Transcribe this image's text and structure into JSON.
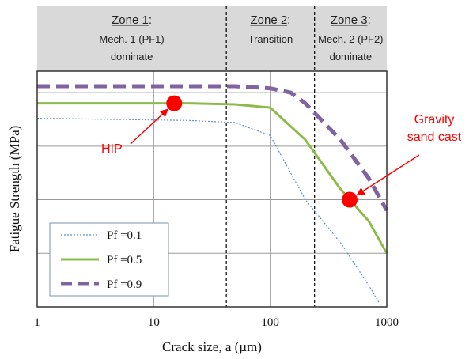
{
  "chart_data": {
    "type": "line",
    "xlabel": "Crack size, a (µm)",
    "ylabel": "Fatigue Strength (MPa)",
    "xscale": "log",
    "xlim": [
      1,
      1000
    ],
    "x_ticks": [
      "1",
      "10",
      "100",
      "1000"
    ],
    "grid": true,
    "legend_position": "bottom-left",
    "series": [
      {
        "name": "Pf =0.1",
        "style": "dotted",
        "color": "#5b8fd6",
        "x": [
          1,
          20,
          50,
          100,
          200,
          400,
          700,
          900
        ],
        "y": [
          0.88,
          0.87,
          0.86,
          0.8,
          0.5,
          0.3,
          0.1,
          0.0
        ]
      },
      {
        "name": "Pf =0.5",
        "style": "solid",
        "color": "#8dbb4a",
        "x": [
          1,
          20,
          50,
          100,
          200,
          400,
          700,
          1000
        ],
        "y": [
          0.95,
          0.95,
          0.945,
          0.93,
          0.78,
          0.55,
          0.4,
          0.25
        ]
      },
      {
        "name": "Pf =0.9",
        "style": "dashed",
        "color": "#8064a2",
        "x": [
          1,
          20,
          50,
          100,
          150,
          200,
          400,
          700,
          1000
        ],
        "y": [
          1.03,
          1.03,
          1.03,
          1.02,
          1.0,
          0.95,
          0.78,
          0.6,
          0.45
        ]
      }
    ],
    "markers": [
      {
        "x": 15,
        "y": 0.95,
        "color": "#ff0000"
      },
      {
        "x": 480,
        "y": 0.5,
        "color": "#ff0000"
      }
    ],
    "zone_boundaries": [
      42,
      240
    ],
    "zones": [
      {
        "title": "Zone 1",
        "line1": "Mech. 1 (PF1)",
        "line2": "dominate"
      },
      {
        "title": "Zone 2",
        "line1": "Transition",
        "line2": ""
      },
      {
        "title": "Zone 3",
        "line1": "Mech. 2 (PF2)",
        "line2": "dominate"
      }
    ],
    "annotations": [
      {
        "label": "HIP",
        "lines": [
          "HIP"
        ],
        "target_marker": 0
      },
      {
        "label": "Gravity sand cast",
        "lines": [
          "Gravity",
          "sand cast"
        ],
        "target_marker": 1
      }
    ],
    "colors": {
      "zone_band": "#d9d9d9",
      "annotation": "#ff0000"
    }
  }
}
